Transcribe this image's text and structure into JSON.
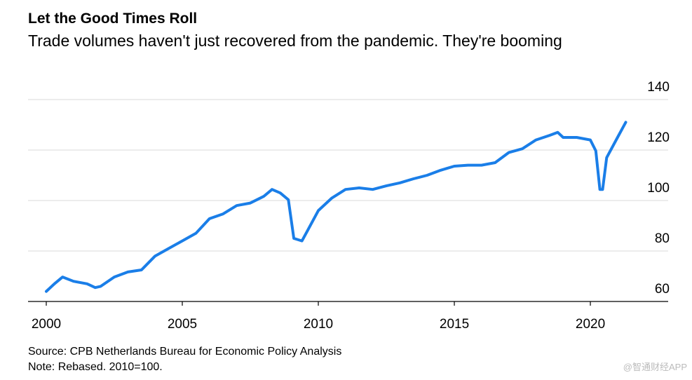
{
  "chart_data": {
    "type": "line",
    "title": "Let the Good Times Roll",
    "subtitle": "Trade volumes haven't just recovered from the pandemic. They're booming",
    "source": "Source: CPB Netherlands Bureau for Economic Policy Analysis",
    "note": "Note: Rebased. 2010=100.",
    "watermark": "@智通财经APP",
    "x": [
      2000,
      2000.3,
      2000.6,
      2001,
      2001.5,
      2001.8,
      2002,
      2002.5,
      2003,
      2003.5,
      2004,
      2004.5,
      2005,
      2005.5,
      2006,
      2006.5,
      2007,
      2007.5,
      2008,
      2008.3,
      2008.6,
      2008.9,
      2009.1,
      2009.4,
      2009.6,
      2010,
      2010.5,
      2011,
      2011.5,
      2012,
      2012.5,
      2013,
      2013.5,
      2014,
      2014.5,
      2015,
      2015.5,
      2016,
      2016.5,
      2017,
      2017.5,
      2018,
      2018.5,
      2018.8,
      2019,
      2019.5,
      2020,
      2020.2,
      2020.35,
      2020.45,
      2020.6,
      2021,
      2021.3
    ],
    "series": [
      {
        "name": "Trade volume",
        "color": "#1a7ee8",
        "values": [
          64,
          67,
          69.7,
          68,
          67,
          65.5,
          66,
          69.7,
          71.7,
          72.5,
          78,
          81,
          84,
          87,
          92.8,
          94.7,
          98,
          99,
          101.7,
          104.4,
          103,
          100.3,
          85,
          84,
          88,
          96,
          101,
          104.4,
          105,
          104.4,
          105.8,
          107,
          108.6,
          110,
          112,
          113.6,
          114,
          114,
          115,
          119,
          120.5,
          124,
          125.8,
          127,
          125,
          125,
          124,
          119.7,
          104.4,
          104.4,
          117,
          125,
          131
        ]
      }
    ],
    "xlim": [
      1999.33,
      2022.86
    ],
    "xticks": [
      2000,
      2005,
      2010,
      2015,
      2020
    ],
    "ylim": [
      60,
      140
    ],
    "yticks": [
      60,
      80,
      100,
      120,
      140
    ],
    "grid": true
  }
}
